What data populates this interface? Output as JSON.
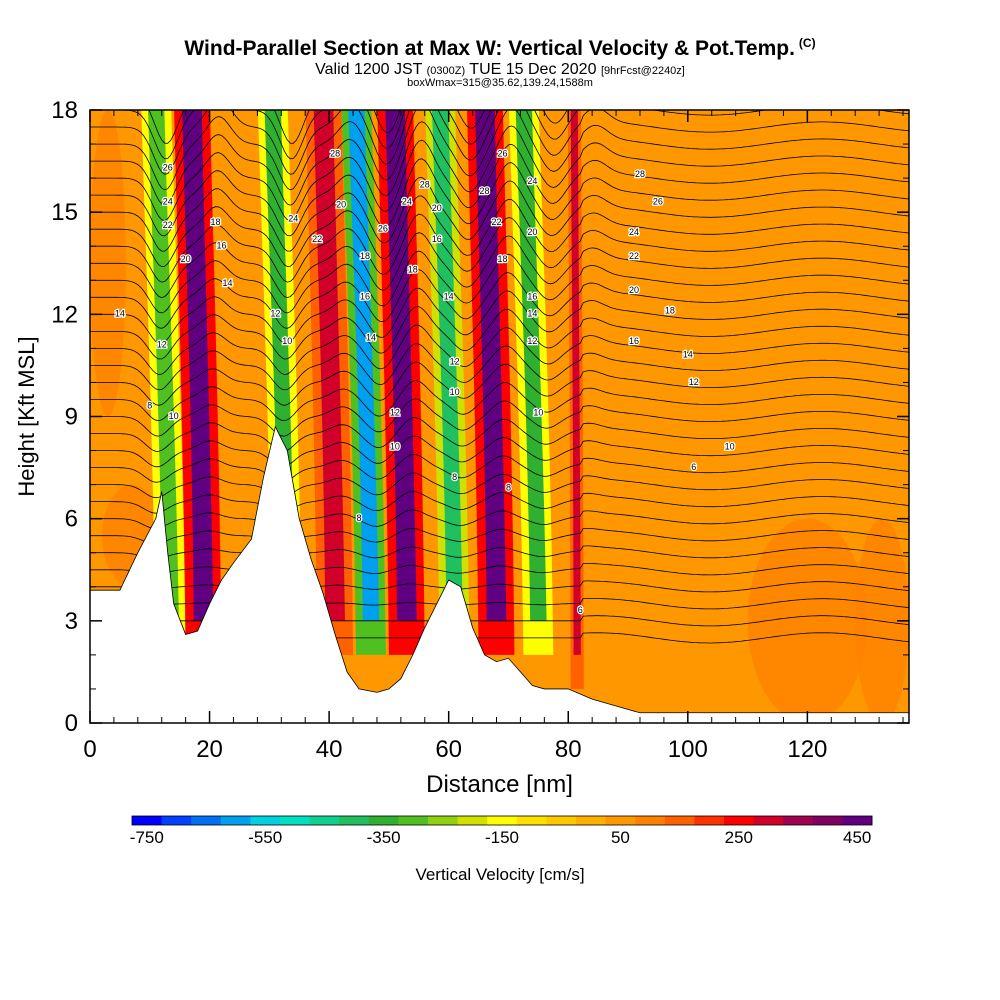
{
  "header": {
    "title": "Wind-Parallel Section at Max W: Vertical Velocity & Pot.Temp.",
    "title_unit": "(C)",
    "valid_prefix": "Valid 1200 JST",
    "valid_utc": "(0300Z)",
    "valid_date": "TUE 15 Dec 2020",
    "forecast": "[9hrFcst@2240z]",
    "box_info": "boxWmax=315@35.62,139.24,1588m"
  },
  "chart_data": {
    "type": "heatmap",
    "xlabel": "Distance [nm]",
    "ylabel": "Height [Kft MSL]",
    "xlim": [
      0,
      137
    ],
    "ylim": [
      0,
      18
    ],
    "x_ticks": [
      "0",
      "20",
      "40",
      "60",
      "80",
      "100",
      "120"
    ],
    "y_ticks": [
      "0",
      "3",
      "6",
      "9",
      "12",
      "15",
      "18"
    ],
    "colorbar": {
      "label": "Vertical Velocity [cm/s]",
      "tick_labels": [
        "-750",
        "-550",
        "-350",
        "-150",
        "50",
        "250",
        "450"
      ],
      "colors": [
        "#0000ff",
        "#0040ff",
        "#0070f0",
        "#00a0f0",
        "#00d0e0",
        "#00e0c0",
        "#10d090",
        "#20c060",
        "#30b030",
        "#50c020",
        "#90d010",
        "#d0e000",
        "#ffff00",
        "#ffe000",
        "#ffc800",
        "#ffb000",
        "#ff9800",
        "#ff8000",
        "#ff6000",
        "#ff3000",
        "#ff0000",
        "#d0002a",
        "#a00050",
        "#800060",
        "#600080"
      ]
    },
    "terrain_kft": [
      [
        0,
        3.9
      ],
      [
        5,
        3.9
      ],
      [
        8,
        5.0
      ],
      [
        11,
        6.0
      ],
      [
        12,
        6.8
      ],
      [
        13,
        5.0
      ],
      [
        14,
        3.5
      ],
      [
        16,
        2.6
      ],
      [
        18,
        2.7
      ],
      [
        20,
        3.5
      ],
      [
        22,
        4.2
      ],
      [
        24,
        4.7
      ],
      [
        27,
        5.4
      ],
      [
        29,
        7.2
      ],
      [
        31,
        8.7
      ],
      [
        33,
        8.0
      ],
      [
        35,
        6.0
      ],
      [
        37,
        4.8
      ],
      [
        39,
        3.8
      ],
      [
        41,
        2.6
      ],
      [
        43,
        1.5
      ],
      [
        45,
        1.0
      ],
      [
        48,
        0.9
      ],
      [
        50,
        1.0
      ],
      [
        52,
        1.3
      ],
      [
        54,
        2.0
      ],
      [
        56,
        2.8
      ],
      [
        58,
        3.5
      ],
      [
        60,
        4.2
      ],
      [
        62,
        4.0
      ],
      [
        64,
        2.8
      ],
      [
        66,
        2.0
      ],
      [
        68,
        1.8
      ],
      [
        70,
        1.9
      ],
      [
        72,
        1.5
      ],
      [
        74,
        1.1
      ],
      [
        76,
        1.0
      ],
      [
        80,
        1.0
      ],
      [
        84,
        0.7
      ],
      [
        88,
        0.5
      ],
      [
        92,
        0.3
      ],
      [
        100,
        0.3
      ],
      [
        137,
        0.3
      ]
    ],
    "updraft_bands": [
      {
        "x": 19,
        "w_cm_s": 450
      },
      {
        "x": 41,
        "w_cm_s": 300
      },
      {
        "x": 53,
        "w_cm_s": 480
      },
      {
        "x": 68,
        "w_cm_s": 450
      },
      {
        "x": 81.5,
        "w_cm_s": 280
      }
    ],
    "downdraft_bands": [
      {
        "x": 13.5,
        "w_cm_s": -300
      },
      {
        "x": 33,
        "w_cm_s": -350
      },
      {
        "x": 47,
        "w_cm_s": -600
      },
      {
        "x": 61,
        "w_cm_s": -400
      },
      {
        "x": 75,
        "w_cm_s": -350
      }
    ],
    "contour_labels": [
      {
        "text": "26",
        "x": 13,
        "y": 16.3
      },
      {
        "text": "24",
        "x": 13,
        "y": 15.3
      },
      {
        "text": "22",
        "x": 13,
        "y": 14.6
      },
      {
        "text": "20",
        "x": 16,
        "y": 13.6
      },
      {
        "text": "18",
        "x": 21,
        "y": 14.7
      },
      {
        "text": "16",
        "x": 22,
        "y": 14.0
      },
      {
        "text": "14",
        "x": 23,
        "y": 12.9
      },
      {
        "text": "14",
        "x": 5,
        "y": 12.0
      },
      {
        "text": "12",
        "x": 12,
        "y": 11.1
      },
      {
        "text": "8",
        "x": 10,
        "y": 9.3
      },
      {
        "text": "10",
        "x": 14,
        "y": 9.0
      },
      {
        "text": "12",
        "x": 31,
        "y": 12.0
      },
      {
        "text": "10",
        "x": 33,
        "y": 11.2
      },
      {
        "text": "24",
        "x": 34,
        "y": 14.8
      },
      {
        "text": "22",
        "x": 38,
        "y": 14.2
      },
      {
        "text": "20",
        "x": 42,
        "y": 15.2
      },
      {
        "text": "28",
        "x": 41,
        "y": 16.7
      },
      {
        "text": "26",
        "x": 49,
        "y": 14.5
      },
      {
        "text": "18",
        "x": 46,
        "y": 13.7
      },
      {
        "text": "16",
        "x": 46,
        "y": 12.5
      },
      {
        "text": "14",
        "x": 47,
        "y": 11.3
      },
      {
        "text": "24",
        "x": 53,
        "y": 15.3
      },
      {
        "text": "28",
        "x": 56,
        "y": 15.8
      },
      {
        "text": "16",
        "x": 58,
        "y": 14.2
      },
      {
        "text": "18",
        "x": 54,
        "y": 13.3
      },
      {
        "text": "20",
        "x": 58,
        "y": 15.1
      },
      {
        "text": "14",
        "x": 60,
        "y": 12.5
      },
      {
        "text": "12",
        "x": 51,
        "y": 9.1
      },
      {
        "text": "10",
        "x": 51,
        "y": 8.1
      },
      {
        "text": "12",
        "x": 61,
        "y": 10.6
      },
      {
        "text": "10",
        "x": 61,
        "y": 9.7
      },
      {
        "text": "8",
        "x": 61,
        "y": 7.2
      },
      {
        "text": "8",
        "x": 45,
        "y": 6.0
      },
      {
        "text": "28",
        "x": 66,
        "y": 15.6
      },
      {
        "text": "26",
        "x": 69,
        "y": 16.7
      },
      {
        "text": "22",
        "x": 68,
        "y": 14.7
      },
      {
        "text": "18",
        "x": 69,
        "y": 13.6
      },
      {
        "text": "24",
        "x": 74,
        "y": 15.9
      },
      {
        "text": "20",
        "x": 74,
        "y": 14.4
      },
      {
        "text": "16",
        "x": 74,
        "y": 12.5
      },
      {
        "text": "14",
        "x": 74,
        "y": 12.0
      },
      {
        "text": "12",
        "x": 74,
        "y": 11.2
      },
      {
        "text": "10",
        "x": 75,
        "y": 9.1
      },
      {
        "text": "8",
        "x": 70,
        "y": 6.9
      },
      {
        "text": "6",
        "x": 82,
        "y": 3.3
      },
      {
        "text": "28",
        "x": 92,
        "y": 16.1
      },
      {
        "text": "26",
        "x": 95,
        "y": 15.3
      },
      {
        "text": "24",
        "x": 91,
        "y": 14.4
      },
      {
        "text": "22",
        "x": 91,
        "y": 13.7
      },
      {
        "text": "20",
        "x": 91,
        "y": 12.7
      },
      {
        "text": "18",
        "x": 97,
        "y": 12.1
      },
      {
        "text": "16",
        "x": 91,
        "y": 11.2
      },
      {
        "text": "14",
        "x": 100,
        "y": 10.8
      },
      {
        "text": "12",
        "x": 101,
        "y": 10.0
      },
      {
        "text": "10",
        "x": 107,
        "y": 8.1
      },
      {
        "text": "6",
        "x": 101,
        "y": 7.5
      }
    ]
  }
}
